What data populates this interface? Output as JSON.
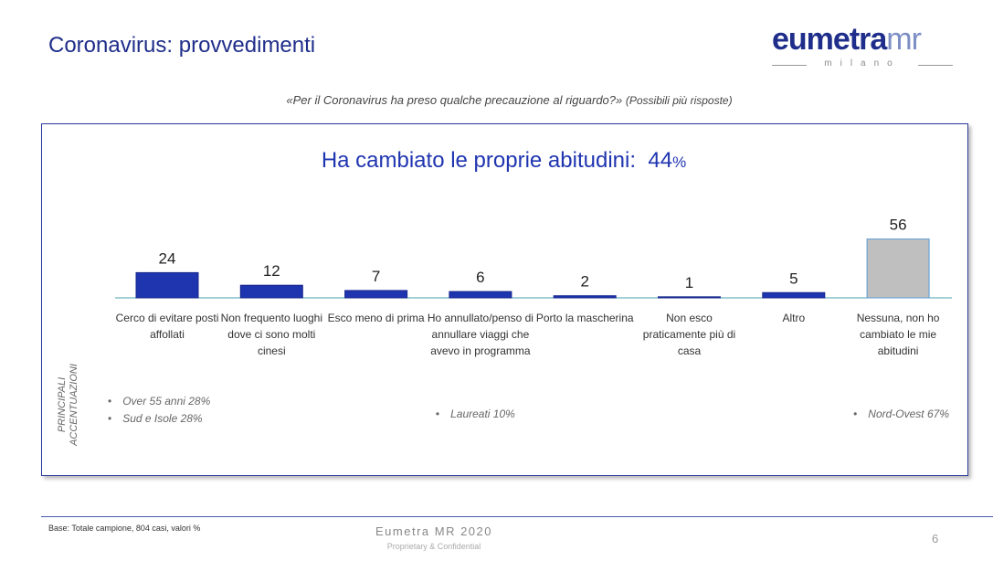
{
  "header": {
    "title": "Coronavirus: provvedimenti",
    "logo": "eumetra",
    "logo_suffix": "mr",
    "logo_sub": "milano"
  },
  "question": "«Per il Coronavirus ha preso qualche precauzione al riguardo?»",
  "question_note": "(Possibili più risposte)",
  "chart_data": {
    "type": "bar",
    "title": "Ha cambiato le proprie abitudini:",
    "highlight": "44",
    "highlight_unit": "%",
    "categories": [
      "Cerco di evitare posti affollati",
      "Non frequento luoghi dove ci sono molti cinesi",
      "Esco meno di prima",
      "Ho annullato/penso di annullare viaggi che avevo in programma",
      "Porto la mascherina",
      "Non esco praticamente più di casa",
      "Altro",
      "Nessuna, non ho cambiato le mie abitudini"
    ],
    "values": [
      24,
      12,
      7,
      6,
      2,
      1,
      5,
      56
    ],
    "colors": [
      "#1f35b0",
      "#1f35b0",
      "#1f35b0",
      "#1f35b0",
      "#1f35b0",
      "#1f35b0",
      "#1f35b0",
      "#bfbfbf"
    ],
    "annotation_title": "PRINCIPALI ACCENTUAZIONI",
    "annotations": [
      [
        "Over 55 anni 28%",
        "Sud e Isole 28%"
      ],
      [],
      [],
      [
        "Laureati 10%"
      ],
      [],
      [],
      [],
      [
        "Nord-Ovest 67%"
      ]
    ]
  },
  "footer": {
    "base": "Base: Totale campione, 804 casi, valori %",
    "brand": "Eumetra MR 2020",
    "confidential": "Proprietary & Confidential",
    "page": 6
  }
}
